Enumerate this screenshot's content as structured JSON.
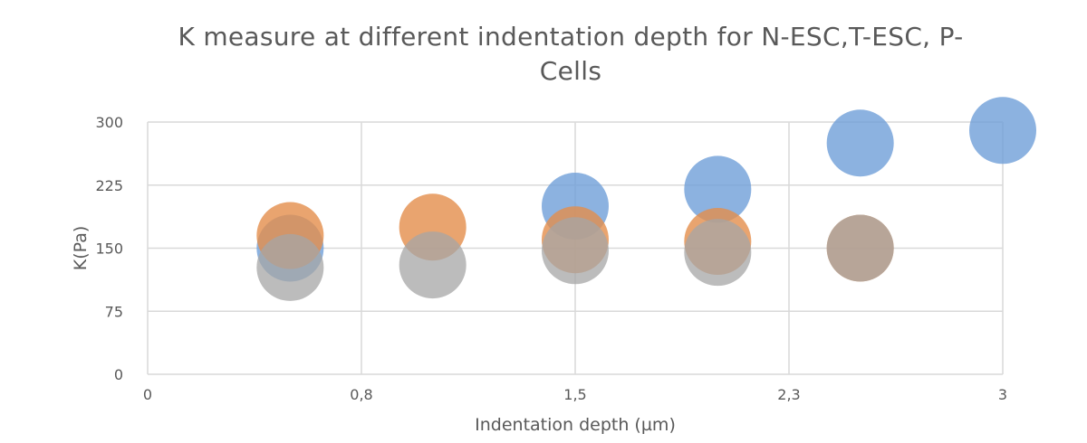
{
  "chart_data": {
    "type": "scatter",
    "title_line1": "K measure at different indentation depth for N-ESC,T-ESC, P-",
    "title_line2": "Cells",
    "xlabel": "Indentation depth (µm)",
    "ylabel": "K(Pa)",
    "xlim": [
      0,
      3
    ],
    "ylim": [
      0,
      300
    ],
    "x_ticks": [
      {
        "value": 0,
        "label": "0"
      },
      {
        "value": 0.75,
        "label": "0,8"
      },
      {
        "value": 1.5,
        "label": "1,5"
      },
      {
        "value": 2.25,
        "label": "2,3"
      },
      {
        "value": 3,
        "label": "3"
      }
    ],
    "y_ticks": [
      {
        "value": 0,
        "label": "0"
      },
      {
        "value": 75,
        "label": "75"
      },
      {
        "value": 150,
        "label": "150"
      },
      {
        "value": 225,
        "label": "225"
      },
      {
        "value": 300,
        "label": "300"
      }
    ],
    "grid": true,
    "legend": "none",
    "series": [
      {
        "color": "#6F9FD8",
        "opacity": 0.8,
        "points": [
          {
            "x": 0.5,
            "y": 150
          },
          {
            "x": 1.5,
            "y": 200
          },
          {
            "x": 2.0,
            "y": 220
          },
          {
            "x": 2.5,
            "y": 275
          },
          {
            "x": 3.0,
            "y": 290
          }
        ]
      },
      {
        "color": "#E38D4B",
        "opacity": 0.8,
        "points": [
          {
            "x": 0.5,
            "y": 165
          },
          {
            "x": 1.0,
            "y": 175
          },
          {
            "x": 1.5,
            "y": 160
          },
          {
            "x": 2.0,
            "y": 158
          },
          {
            "x": 2.5,
            "y": 150
          }
        ]
      },
      {
        "color": "#A5A5A5",
        "opacity": 0.75,
        "points": [
          {
            "x": 0.5,
            "y": 127
          },
          {
            "x": 1.0,
            "y": 130
          },
          {
            "x": 1.5,
            "y": 147
          },
          {
            "x": 2.0,
            "y": 145
          },
          {
            "x": 2.5,
            "y": 150
          }
        ]
      }
    ]
  }
}
